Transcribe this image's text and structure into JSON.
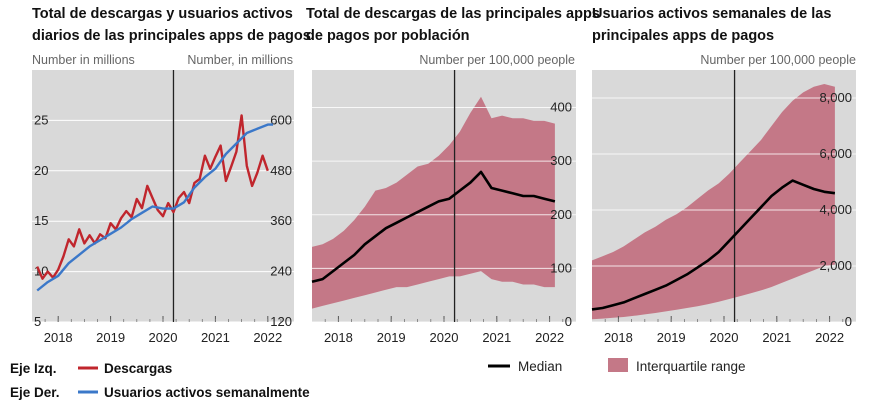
{
  "colors": {
    "panel_bg": "#d9d9d9",
    "downloads": "#c0262d",
    "users": "#3b78c9",
    "median": "#000000",
    "iqr": "#c47887",
    "gridline": "#ffffff",
    "divider": "#222222"
  },
  "legend": {
    "left_axis_label": "Eje Izq.",
    "right_axis_label": "Eje Der.",
    "downloads": "Descargas",
    "users": "Usuarios activos semanalmente",
    "median": "Median",
    "iqr": "Interquartile range"
  },
  "chart_data": [
    {
      "type": "line",
      "title": [
        "Total de descargas y usuarios activos",
        "diarios de las principales apps de pagos"
      ],
      "left_unit": "Number in millions",
      "right_unit": "Number, in millions",
      "x_ticks": [
        "2018",
        "2019",
        "2020",
        "2021",
        "2022"
      ],
      "x_range": [
        2017.5,
        2022.5
      ],
      "vline_x": 2020.2,
      "y_left": {
        "range": [
          5,
          30
        ],
        "ticks": [
          "5",
          "10",
          "15",
          "20",
          "25"
        ],
        "tick_values": [
          5,
          10,
          15,
          20,
          25
        ]
      },
      "y_right": {
        "range": [
          120,
          720
        ],
        "ticks": [
          "120",
          "240",
          "360",
          "480",
          "600"
        ],
        "tick_values": [
          120,
          240,
          360,
          480,
          600
        ]
      },
      "series": [
        {
          "name": "Descargas",
          "axis": "left",
          "x": [
            2017.6,
            2017.7,
            2017.8,
            2017.9,
            2018.0,
            2018.1,
            2018.2,
            2018.3,
            2018.4,
            2018.5,
            2018.6,
            2018.7,
            2018.8,
            2018.9,
            2019.0,
            2019.1,
            2019.2,
            2019.3,
            2019.4,
            2019.5,
            2019.6,
            2019.7,
            2019.8,
            2019.9,
            2020.0,
            2020.1,
            2020.2,
            2020.3,
            2020.4,
            2020.5,
            2020.6,
            2020.7,
            2020.8,
            2020.9,
            2021.0,
            2021.1,
            2021.2,
            2021.3,
            2021.4,
            2021.5,
            2021.6,
            2021.7,
            2021.8,
            2021.9,
            2022.0
          ],
          "y": [
            10.5,
            9.3,
            10.0,
            9.4,
            10.2,
            11.5,
            13.2,
            12.5,
            14.2,
            12.8,
            13.6,
            12.8,
            13.7,
            13.3,
            14.8,
            14.2,
            15.3,
            16.0,
            15.4,
            17.2,
            16.3,
            18.5,
            17.3,
            16.1,
            15.5,
            16.8,
            15.9,
            17.3,
            17.9,
            16.8,
            18.8,
            19.2,
            21.5,
            20.2,
            21.4,
            22.5,
            19.0,
            20.4,
            21.9,
            25.5,
            20.5,
            18.5,
            19.8,
            21.5,
            20.0
          ]
        },
        {
          "name": "Usuarios activos semanalmente",
          "axis": "right",
          "x": [
            2017.6,
            2017.8,
            2018.0,
            2018.2,
            2018.4,
            2018.6,
            2018.8,
            2019.0,
            2019.2,
            2019.4,
            2019.6,
            2019.8,
            2020.0,
            2020.2,
            2020.4,
            2020.6,
            2020.8,
            2021.0,
            2021.2,
            2021.4,
            2021.6,
            2021.8,
            2022.0,
            2022.1
          ],
          "y": [
            195,
            215,
            230,
            260,
            280,
            300,
            315,
            330,
            345,
            365,
            380,
            395,
            390,
            390,
            405,
            440,
            465,
            485,
            520,
            545,
            570,
            580,
            590,
            590
          ]
        }
      ]
    },
    {
      "type": "area",
      "title": [
        "Total de descargas de las principales apps",
        "de pagos por población"
      ],
      "unit": "Number per 100,000 people",
      "x_ticks": [
        "2018",
        "2019",
        "2020",
        "2021",
        "2022"
      ],
      "x_range": [
        2017.5,
        2022.5
      ],
      "vline_x": 2020.2,
      "y_right": {
        "range": [
          0,
          470
        ],
        "ticks": [
          "0",
          "100",
          "200",
          "300",
          "400"
        ],
        "tick_values": [
          0,
          100,
          200,
          300,
          400
        ]
      },
      "x": [
        2017.5,
        2017.7,
        2017.9,
        2018.1,
        2018.3,
        2018.5,
        2018.7,
        2018.9,
        2019.1,
        2019.3,
        2019.5,
        2019.7,
        2019.9,
        2020.1,
        2020.3,
        2020.5,
        2020.7,
        2020.9,
        2021.1,
        2021.3,
        2021.5,
        2021.7,
        2021.9,
        2022.1
      ],
      "series": [
        {
          "name": "Median",
          "y": [
            75,
            80,
            95,
            110,
            125,
            145,
            160,
            175,
            185,
            195,
            205,
            215,
            225,
            230,
            245,
            260,
            280,
            250,
            245,
            240,
            235,
            235,
            230,
            225
          ]
        },
        {
          "name": "Interquartile range (upper)",
          "y": [
            140,
            145,
            155,
            170,
            190,
            215,
            245,
            250,
            260,
            275,
            290,
            295,
            310,
            330,
            355,
            390,
            420,
            380,
            385,
            380,
            380,
            375,
            375,
            370
          ]
        },
        {
          "name": "Interquartile range (lower)",
          "y": [
            25,
            30,
            35,
            40,
            45,
            50,
            55,
            60,
            65,
            65,
            70,
            75,
            80,
            85,
            85,
            90,
            95,
            80,
            75,
            75,
            70,
            70,
            65,
            65
          ]
        }
      ]
    },
    {
      "type": "area",
      "title": [
        "Usuarios activos semanales de las",
        "principales apps de pagos"
      ],
      "unit": "Number per 100,000 people",
      "x_ticks": [
        "2018",
        "2019",
        "2020",
        "2021",
        "2022"
      ],
      "x_range": [
        2017.5,
        2022.5
      ],
      "vline_x": 2020.2,
      "y_right": {
        "range": [
          0,
          9000
        ],
        "ticks": [
          "0",
          "2,000",
          "4,000",
          "6,000",
          "8,000"
        ],
        "tick_values": [
          0,
          2000,
          4000,
          6000,
          8000
        ]
      },
      "x": [
        2017.5,
        2017.7,
        2017.9,
        2018.1,
        2018.3,
        2018.5,
        2018.7,
        2018.9,
        2019.1,
        2019.3,
        2019.5,
        2019.7,
        2019.9,
        2020.1,
        2020.3,
        2020.5,
        2020.7,
        2020.9,
        2021.1,
        2021.3,
        2021.5,
        2021.7,
        2021.9,
        2022.1
      ],
      "series": [
        {
          "name": "Median",
          "y": [
            450,
            500,
            600,
            700,
            850,
            1000,
            1150,
            1300,
            1500,
            1700,
            1950,
            2200,
            2500,
            2900,
            3300,
            3700,
            4100,
            4500,
            4800,
            5050,
            4900,
            4750,
            4650,
            4600
          ]
        },
        {
          "name": "Interquartile range (upper)",
          "y": [
            2200,
            2350,
            2500,
            2700,
            2950,
            3200,
            3400,
            3650,
            3850,
            4100,
            4400,
            4700,
            4950,
            5300,
            5700,
            6100,
            6500,
            7000,
            7500,
            7900,
            8200,
            8400,
            8500,
            8400
          ]
        },
        {
          "name": "Interquartile range (lower)",
          "y": [
            100,
            120,
            150,
            180,
            220,
            270,
            320,
            380,
            440,
            500,
            560,
            640,
            720,
            820,
            920,
            1020,
            1130,
            1250,
            1400,
            1550,
            1700,
            1850,
            2000,
            2050
          ]
        }
      ]
    }
  ]
}
